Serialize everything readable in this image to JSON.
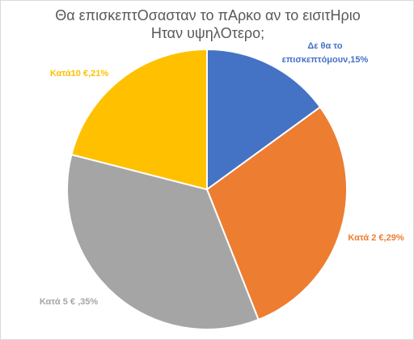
{
  "chart_data": {
    "type": "pie",
    "title_lines": [
      "Θα επισκεπτΟσασταν το πΑρκο αν το εισιτΗριο",
      "Ηταν υψηλΟτερο;"
    ],
    "slices": [
      {
        "label_lines": [
          "Δε θα το",
          "επισκεπτόμουν,15%"
        ],
        "value": 15,
        "color": "#4472C4"
      },
      {
        "label_lines": [
          "Κατά 2 €,29%"
        ],
        "value": 29,
        "color": "#ED7D31"
      },
      {
        "label_lines": [
          "Κατά 5 €   ,35%"
        ],
        "value": 35,
        "color": "#A5A5A5"
      },
      {
        "label_lines": [
          "Κατά10 €,21%"
        ],
        "value": 21,
        "color": "#FFC000"
      }
    ],
    "start_angle_deg": 0,
    "direction": "clockwise",
    "legend": "none"
  }
}
